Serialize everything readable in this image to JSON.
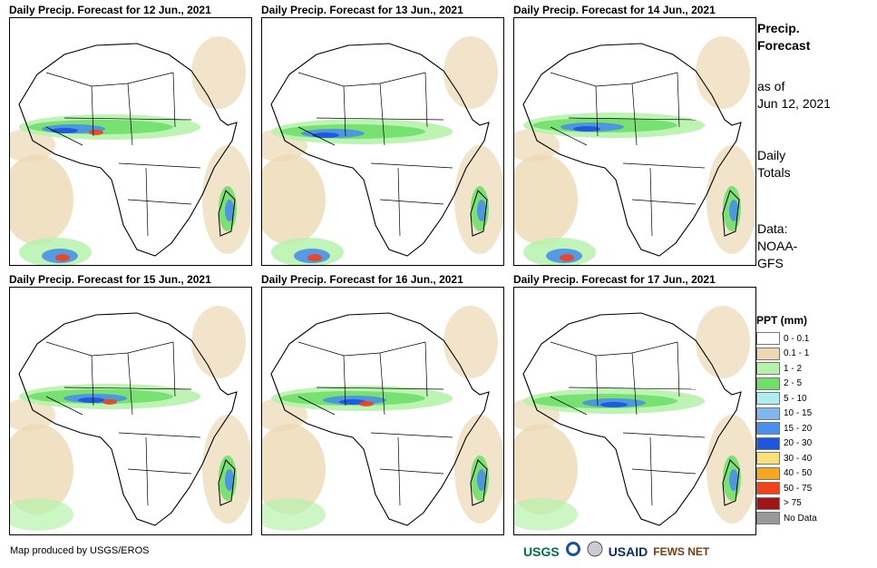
{
  "panels": [
    {
      "title": "Daily Precip. Forecast for 12 Jun., 2021"
    },
    {
      "title": "Daily Precip. Forecast for 13 Jun., 2021"
    },
    {
      "title": "Daily Precip. Forecast for 14 Jun., 2021"
    },
    {
      "title": "Daily Precip. Forecast for 15 Jun., 2021"
    },
    {
      "title": "Daily Precip. Forecast for 16 Jun., 2021"
    },
    {
      "title": "Daily Precip. Forecast for 17 Jun., 2021"
    }
  ],
  "sidebar": {
    "heading_line1": "Precip.",
    "heading_line2": "Forecast",
    "asof_line1": "as of",
    "asof_line2": "Jun 12, 2021",
    "totals_line1": "Daily",
    "totals_line2": "Totals",
    "data_line1": "Data:",
    "data_line2": "NOAA-",
    "data_line3": "GFS"
  },
  "legend": {
    "title": "PPT (mm)",
    "items": [
      {
        "label": "0 - 0.1",
        "color": "#ffffff"
      },
      {
        "label": "0.1 - 1",
        "color": "#ecd9b4"
      },
      {
        "label": "1 - 2",
        "color": "#b6f2ab"
      },
      {
        "label": "2 - 5",
        "color": "#6fe06a"
      },
      {
        "label": "5 - 10",
        "color": "#aeeef0"
      },
      {
        "label": "10 - 15",
        "color": "#7fb7ee"
      },
      {
        "label": "15 - 20",
        "color": "#4a8fe9"
      },
      {
        "label": "20 - 30",
        "color": "#1e55e0"
      },
      {
        "label": "30 - 40",
        "color": "#f7e07a"
      },
      {
        "label": "40 - 50",
        "color": "#f5a623"
      },
      {
        "label": "50 - 75",
        "color": "#f0421b"
      },
      {
        "label": "> 75",
        "color": "#a01515"
      },
      {
        "label": "No Data",
        "color": "#999999"
      }
    ]
  },
  "credit": "Map produced by USGS/EROS",
  "logos": {
    "usgs": "USGS",
    "usaid": "USAID",
    "fewsnet": "FEWS NET"
  }
}
